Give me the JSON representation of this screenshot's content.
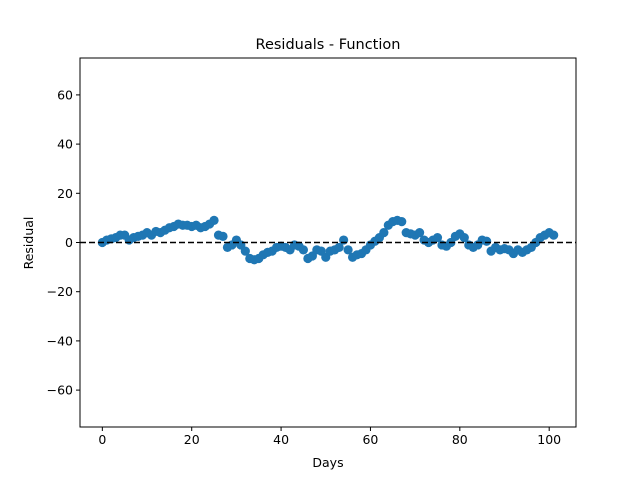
{
  "chart_data": {
    "type": "scatter",
    "title": "Residuals - Function",
    "xlabel": "Days",
    "ylabel": "Residual",
    "xlim": [
      -5,
      106
    ],
    "ylim": [
      -75,
      75
    ],
    "xticks": [
      0,
      20,
      40,
      60,
      80,
      100
    ],
    "yticks": [
      -60,
      -40,
      -20,
      0,
      20,
      40,
      60
    ],
    "xtick_labels": [
      "0",
      "20",
      "40",
      "60",
      "80",
      "100"
    ],
    "ytick_labels": [
      "−60",
      "−40",
      "−20",
      "0",
      "20",
      "40",
      "60"
    ],
    "grid": false,
    "reference_line": {
      "y": 0,
      "style": "dashed",
      "color": "#000000"
    },
    "series": [
      {
        "color": "#1f77b4",
        "x": [
          0,
          1,
          2,
          3,
          4,
          5,
          6,
          7,
          8,
          9,
          10,
          11,
          12,
          13,
          14,
          15,
          16,
          17,
          18,
          19,
          20,
          21,
          22,
          23,
          24,
          25,
          26,
          27,
          28,
          29,
          30,
          31,
          32,
          33,
          34,
          35,
          36,
          37,
          38,
          39,
          40,
          41,
          42,
          43,
          44,
          45,
          46,
          47,
          48,
          49,
          50,
          51,
          52,
          53,
          54,
          55,
          56,
          57,
          58,
          59,
          60,
          61,
          62,
          63,
          64,
          65,
          66,
          67,
          68,
          69,
          70,
          71,
          72,
          73,
          74,
          75,
          76,
          77,
          78,
          79,
          80,
          81,
          82,
          83,
          84,
          85,
          86,
          87,
          88,
          89,
          90,
          91,
          92,
          93,
          94,
          95,
          96,
          97,
          98,
          99,
          100,
          101
        ],
        "y": [
          0,
          1,
          1.5,
          2,
          3,
          3,
          1,
          2,
          2.5,
          3,
          4,
          3,
          4.5,
          4,
          5,
          6,
          6.5,
          7.5,
          7,
          7,
          6.5,
          7,
          6,
          6.5,
          7.5,
          9,
          3,
          2.5,
          -2,
          -1,
          1,
          -1,
          -3.5,
          -6.5,
          -7,
          -6.5,
          -5,
          -4,
          -3.5,
          -2,
          -1.5,
          -2,
          -3,
          -1,
          -1.5,
          -3,
          -6.5,
          -5.5,
          -3,
          -3.5,
          -6,
          -3.5,
          -3,
          -2,
          1,
          -3,
          -6,
          -5,
          -4.5,
          -3,
          -1,
          0.5,
          2,
          4,
          7,
          8.5,
          9,
          8.5,
          4,
          3.5,
          3,
          4,
          1,
          0,
          1,
          2,
          -1,
          -1.5,
          0,
          2.5,
          3.5,
          2,
          -1,
          -2,
          -1,
          1,
          0.5,
          -3.5,
          -2,
          -3,
          -2.5,
          -3,
          -4.5,
          -3,
          -4,
          -3,
          -2,
          0,
          2,
          3,
          4,
          3
        ]
      }
    ]
  }
}
